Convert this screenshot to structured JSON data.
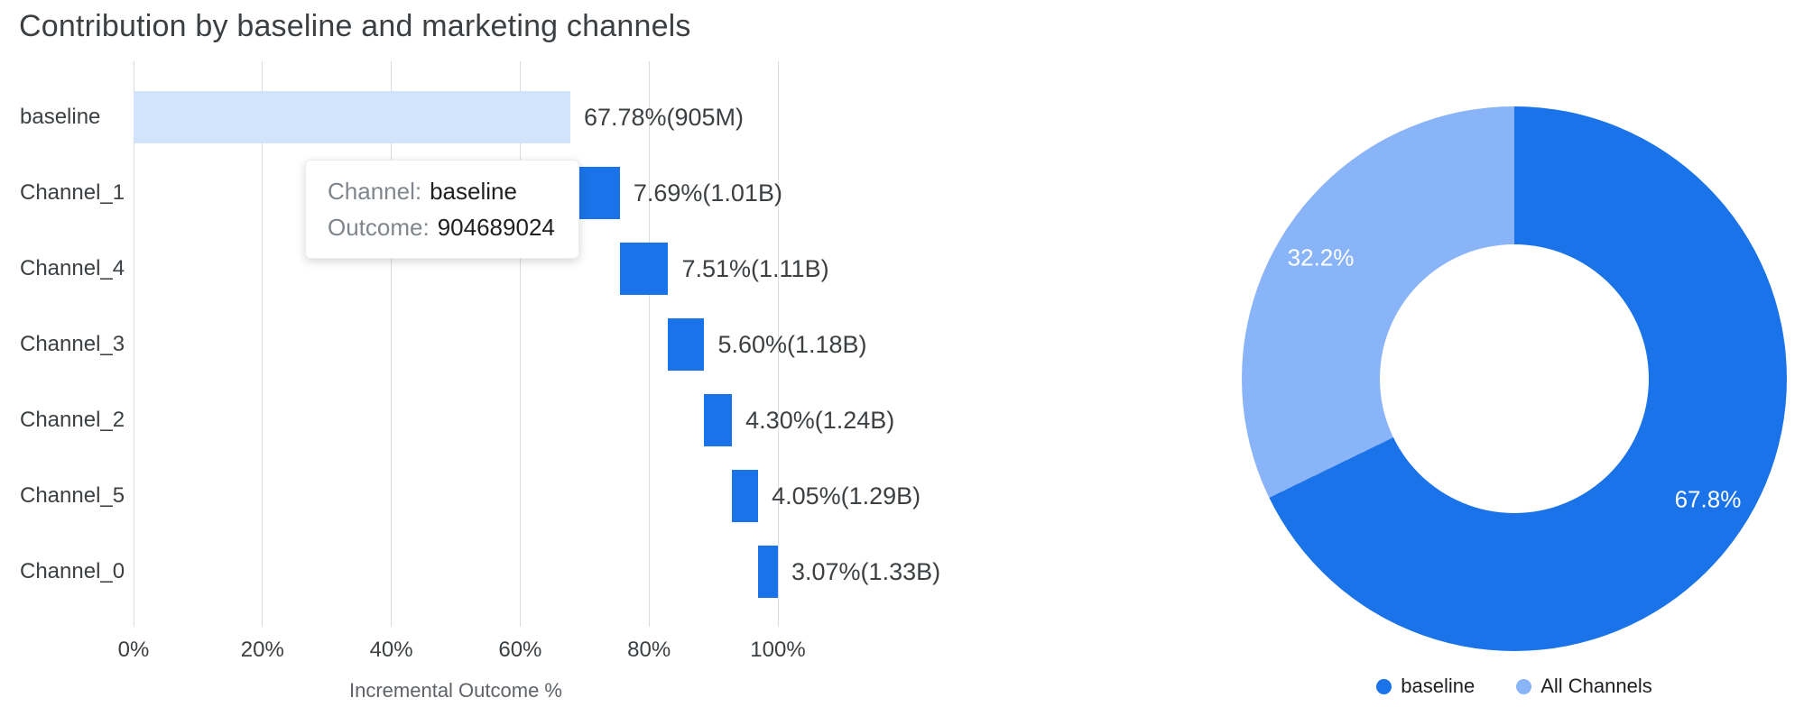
{
  "header": {
    "title": "Contribution by baseline and marketing channels"
  },
  "colors": {
    "channel_bar": "#1a73e8",
    "baseline_bar": "#d2e3fc",
    "donut_baseline": "#1a73e8",
    "donut_all_channels": "#8ab4f8",
    "gridline": "#dadce0",
    "axis_text": "#3c4043",
    "axis_title_text": "#5f6368",
    "tooltip_label_text": "#80868b",
    "tooltip_value_text": "#1f1f1f"
  },
  "tooltip": {
    "channel_label": "Channel:",
    "channel_value": "baseline",
    "outcome_label": "Outcome:",
    "outcome_value": "904689024"
  },
  "chart_data": [
    {
      "type": "bar",
      "variant": "horizontal_waterfall",
      "title": "Contribution by baseline and marketing channels",
      "xlabel": "Incremental Outcome %",
      "ylabel": "",
      "xlim": [
        0,
        100
      ],
      "x_ticks": [
        "0%",
        "20%",
        "40%",
        "60%",
        "80%",
        "100%"
      ],
      "grid": true,
      "bars": [
        {
          "category": "baseline",
          "value": 67.78,
          "cumulative_end": 67.78,
          "label": "67.78%(905M)",
          "color_key": "baseline_bar"
        },
        {
          "category": "Channel_1",
          "value": 7.69,
          "cumulative_end": 75.47,
          "label": "7.69%(1.01B)",
          "color_key": "channel_bar"
        },
        {
          "category": "Channel_4",
          "value": 7.51,
          "cumulative_end": 82.98,
          "label": "7.51%(1.11B)",
          "color_key": "channel_bar"
        },
        {
          "category": "Channel_3",
          "value": 5.6,
          "cumulative_end": 88.58,
          "label": "5.60%(1.18B)",
          "color_key": "channel_bar"
        },
        {
          "category": "Channel_2",
          "value": 4.3,
          "cumulative_end": 92.88,
          "label": "4.30%(1.24B)",
          "color_key": "channel_bar"
        },
        {
          "category": "Channel_5",
          "value": 4.05,
          "cumulative_end": 96.93,
          "label": "4.05%(1.29B)",
          "color_key": "channel_bar"
        },
        {
          "category": "Channel_0",
          "value": 3.07,
          "cumulative_end": 100.0,
          "label": "3.07%(1.33B)",
          "color_key": "channel_bar"
        }
      ]
    },
    {
      "type": "pie",
      "variant": "donut",
      "slices": [
        {
          "label": "baseline",
          "value": 67.8,
          "display": "67.8%",
          "color_key": "donut_baseline"
        },
        {
          "label": "All Channels",
          "value": 32.2,
          "display": "32.2%",
          "color_key": "donut_all_channels"
        }
      ],
      "legend_position": "bottom",
      "start_angle_deg": 0,
      "direction": "clockwise"
    }
  ]
}
